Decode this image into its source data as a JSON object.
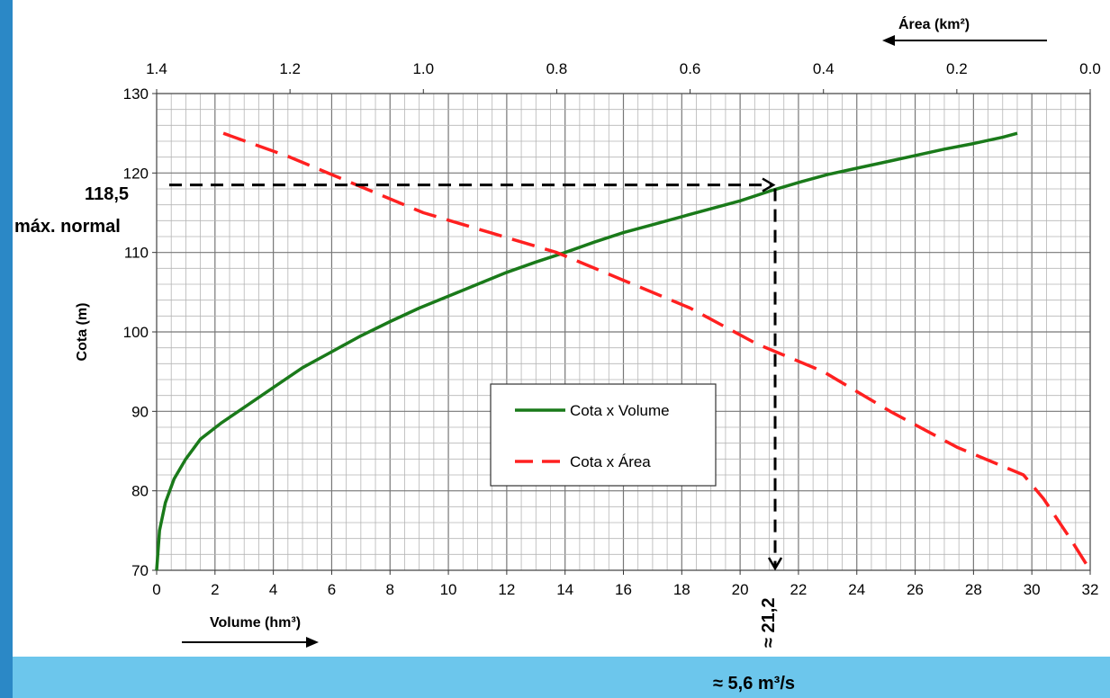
{
  "chart_data": {
    "type": "line",
    "ylabel": "Cota (m)",
    "xlabel": "Volume (hm³)",
    "x2label": "Área (km²)",
    "ylim": [
      70,
      130
    ],
    "xlim": [
      0,
      32
    ],
    "x2lim": [
      1.4,
      0.0
    ],
    "grid": true,
    "legend_position": "center",
    "y_ticks": [
      "70",
      "80",
      "90",
      "100",
      "110",
      "120",
      "130"
    ],
    "x_ticks": [
      "0",
      "2",
      "4",
      "6",
      "8",
      "10",
      "12",
      "14",
      "16",
      "18",
      "20",
      "22",
      "24",
      "26",
      "28",
      "30",
      "32"
    ],
    "x2_ticks": [
      "1.4",
      "1.2",
      "1.0",
      "0.8",
      "0.6",
      "0.4",
      "0.2",
      "0.0"
    ],
    "series": [
      {
        "name": "Cota x Volume",
        "color": "#1a7a1a",
        "style": "solid",
        "axis": "bottom",
        "x": [
          0,
          0.1,
          0.3,
          0.6,
          1.0,
          1.5,
          2.2,
          3.0,
          4.0,
          5.0,
          6.0,
          7.0,
          8.0,
          9.0,
          10.0,
          11.0,
          12.0,
          13.0,
          14.0,
          15.0,
          16.0,
          17.0,
          18.0,
          19.0,
          20.0,
          21.0,
          22.0,
          23.0,
          24.0,
          25.0,
          26.0,
          27.0,
          28.0,
          29.0,
          29.5
        ],
        "y": [
          70,
          75,
          78.5,
          81.5,
          84,
          86.5,
          88.5,
          90.5,
          93,
          95.5,
          97.5,
          99.5,
          101.3,
          103,
          104.5,
          106,
          107.5,
          108.8,
          110,
          111.3,
          112.5,
          113.5,
          114.5,
          115.5,
          116.5,
          117.7,
          118.8,
          119.8,
          120.6,
          121.4,
          122.2,
          123,
          123.7,
          124.5,
          125
        ]
      },
      {
        "name": "Cota x Área",
        "color": "#ff2020",
        "style": "dashed",
        "axis": "top",
        "x": [
          1.3,
          1.2,
          1.1,
          1.0,
          0.9,
          0.8,
          0.7,
          0.6,
          0.5,
          0.4,
          0.3,
          0.2,
          0.1,
          0.07,
          0.03,
          0.0
        ],
        "y": [
          125,
          122,
          118.5,
          115,
          112.5,
          110,
          106.5,
          103,
          98.5,
          95,
          90,
          85.5,
          82,
          79,
          74,
          70
        ]
      }
    ],
    "annotations": {
      "level_value": "118,5",
      "level_label": "máx. normal",
      "volume_value": "≈ 21,2",
      "flow_value": "≈ 5,6 m³/s"
    },
    "guide_level": 118.5,
    "guide_volume": 21.2
  }
}
